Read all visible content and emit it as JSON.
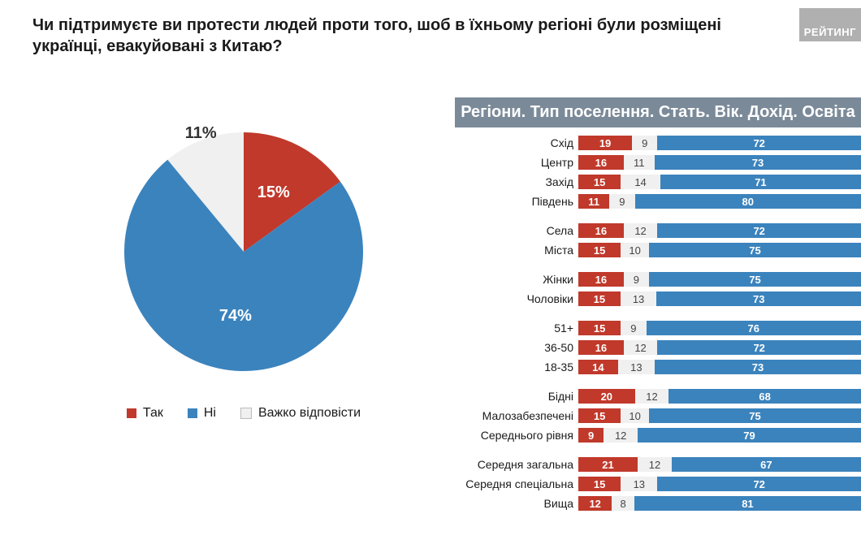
{
  "title": "Чи підтримуєте ви протести людей проти того, шоб в їхньому регіоні були розміщені українці, евакуйовані з Китаю?",
  "watermark": "РЕЙТИНГ",
  "colors": {
    "yes": "#c0392b",
    "no": "#3b83bd",
    "hard": "#f0f0f0",
    "header_bg": "#7b8a99",
    "title_color": "#1a1a1a",
    "pie_label_yes": "#ffffff",
    "pie_label_no": "#ffffff",
    "pie_label_hard": "#333333"
  },
  "pie": {
    "slices": [
      {
        "key": "yes",
        "value": 15,
        "label": "15%",
        "legend": "Так"
      },
      {
        "key": "no",
        "value": 74,
        "label": "74%",
        "legend": "Ні"
      },
      {
        "key": "hard",
        "value": 11,
        "label": "11%",
        "legend": "Важко відповісти"
      }
    ],
    "label_fontsize": 20,
    "legend_fontsize": 16
  },
  "bars": {
    "header": "Регіони. Тип поселення. Стать. Вік. Дохід. Освіта",
    "header_fontsize": 20,
    "row_label_fontsize": 14,
    "value_fontsize": 13,
    "groups": [
      {
        "rows": [
          {
            "label": "Схід",
            "yes": 19,
            "hard": 9,
            "no": 72
          },
          {
            "label": "Центр",
            "yes": 16,
            "hard": 11,
            "no": 73
          },
          {
            "label": "Захід",
            "yes": 15,
            "hard": 14,
            "no": 71
          },
          {
            "label": "Південь",
            "yes": 11,
            "hard": 9,
            "no": 80
          }
        ]
      },
      {
        "rows": [
          {
            "label": "Села",
            "yes": 16,
            "hard": 12,
            "no": 72
          },
          {
            "label": "Міста",
            "yes": 15,
            "hard": 10,
            "no": 75
          }
        ]
      },
      {
        "rows": [
          {
            "label": "Жінки",
            "yes": 16,
            "hard": 9,
            "no": 75
          },
          {
            "label": "Чоловіки",
            "yes": 15,
            "hard": 13,
            "no": 73
          }
        ]
      },
      {
        "rows": [
          {
            "label": "51+",
            "yes": 15,
            "hard": 9,
            "no": 76
          },
          {
            "label": "36-50",
            "yes": 16,
            "hard": 12,
            "no": 72
          },
          {
            "label": "18-35",
            "yes": 14,
            "hard": 13,
            "no": 73
          }
        ]
      },
      {
        "rows": [
          {
            "label": "Бідні",
            "yes": 20,
            "hard": 12,
            "no": 68
          },
          {
            "label": "Малозабезпечені",
            "yes": 15,
            "hard": 10,
            "no": 75
          },
          {
            "label": "Середнього рівня",
            "yes": 9,
            "hard": 12,
            "no": 79
          }
        ]
      },
      {
        "rows": [
          {
            "label": "Середня загальна",
            "yes": 21,
            "hard": 12,
            "no": 67
          },
          {
            "label": "Середня спеціальна",
            "yes": 15,
            "hard": 13,
            "no": 72
          },
          {
            "label": "Вища",
            "yes": 12,
            "hard": 8,
            "no": 81
          }
        ]
      }
    ]
  }
}
